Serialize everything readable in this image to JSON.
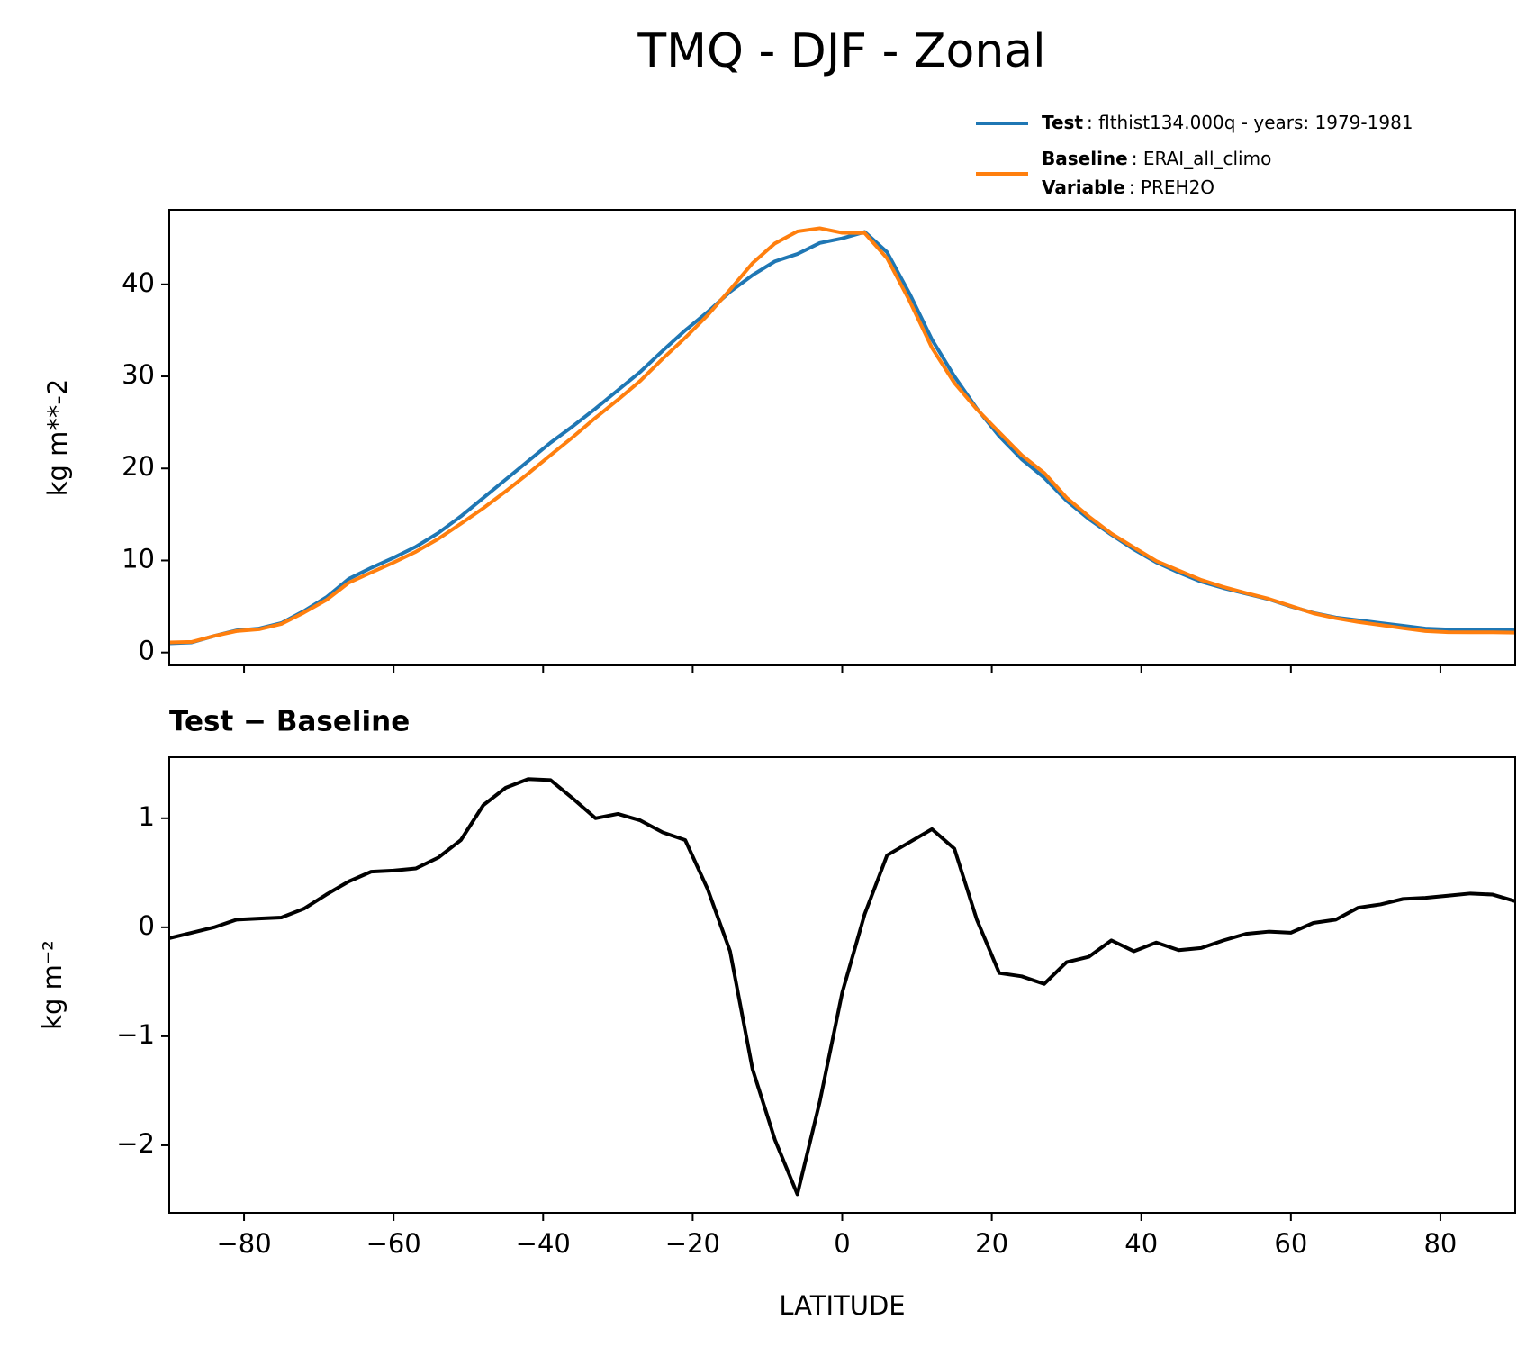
{
  "title": "TMQ - DJF - Zonal",
  "chart_data": [
    {
      "type": "line",
      "ylabel": "kg m**-2",
      "x": [
        -90,
        -87,
        -84,
        -81,
        -78,
        -75,
        -72,
        -69,
        -66,
        -63,
        -60,
        -57,
        -54,
        -51,
        -48,
        -45,
        -42,
        -39,
        -36,
        -33,
        -30,
        -27,
        -24,
        -21,
        -18,
        -15,
        -12,
        -9,
        -6,
        -3,
        0,
        3,
        6,
        9,
        12,
        15,
        18,
        21,
        24,
        27,
        30,
        33,
        36,
        39,
        42,
        45,
        48,
        51,
        54,
        57,
        60,
        63,
        66,
        69,
        72,
        75,
        78,
        81,
        84,
        87,
        90
      ],
      "series": [
        {
          "name": "Test",
          "description": ": flthist134.000q - years: 1979-1981",
          "color": "#1f77b4",
          "values": [
            1.0,
            1.1,
            1.8,
            2.4,
            2.6,
            3.2,
            4.5,
            6.0,
            8.0,
            9.2,
            10.3,
            11.5,
            13.0,
            14.8,
            16.8,
            18.8,
            20.8,
            22.8,
            24.6,
            26.5,
            28.5,
            30.5,
            32.8,
            35.0,
            37.0,
            39.2,
            41.0,
            42.5,
            43.3,
            44.5,
            45.0,
            45.7,
            43.5,
            39.0,
            34.0,
            30.0,
            26.5,
            23.5,
            21.0,
            19.0,
            16.5,
            14.5,
            12.8,
            11.2,
            9.8,
            8.7,
            7.7,
            7.0,
            6.4,
            5.8,
            5.0,
            4.3,
            3.8,
            3.5,
            3.2,
            2.9,
            2.6,
            2.5,
            2.5,
            2.5,
            2.4
          ]
        },
        {
          "name": "Baseline",
          "description": ": ERAI_all_climo",
          "color": "#ff7f0e",
          "values": [
            1.1,
            1.15,
            1.8,
            2.33,
            2.52,
            3.11,
            4.33,
            5.7,
            7.58,
            8.69,
            9.78,
            10.96,
            12.36,
            14.0,
            15.68,
            17.52,
            19.44,
            21.45,
            23.42,
            25.5,
            27.46,
            29.52,
            31.93,
            34.2,
            36.65,
            39.42,
            42.3,
            44.45,
            45.75,
            46.1,
            45.6,
            45.58,
            42.84,
            38.22,
            33.1,
            29.28,
            26.43,
            23.92,
            21.45,
            19.52,
            16.82,
            14.77,
            12.92,
            11.42,
            9.94,
            8.91,
            7.89,
            7.12,
            6.46,
            5.84,
            5.05,
            4.26,
            3.73,
            3.32,
            2.99,
            2.64,
            2.33,
            2.21,
            2.19,
            2.2,
            2.16
          ]
        }
      ],
      "legend_note": {
        "name": "Variable",
        "description": ": PREH2O"
      },
      "xlim": [
        -90,
        90
      ],
      "xticks": [
        -80,
        -60,
        -40,
        -20,
        0,
        20,
        40,
        60,
        80
      ],
      "ylim": [
        -1.4,
        48.1
      ],
      "yticks": [
        0,
        10,
        20,
        30,
        40
      ]
    },
    {
      "type": "line",
      "title": "Test − Baseline",
      "xlabel": "LATITUDE",
      "ylabel": "kg m⁻²",
      "x": [
        -90,
        -87,
        -84,
        -81,
        -78,
        -75,
        -72,
        -69,
        -66,
        -63,
        -60,
        -57,
        -54,
        -51,
        -48,
        -45,
        -42,
        -39,
        -36,
        -33,
        -30,
        -27,
        -24,
        -21,
        -18,
        -15,
        -12,
        -9,
        -6,
        -3,
        0,
        3,
        6,
        9,
        12,
        15,
        18,
        21,
        24,
        27,
        30,
        33,
        36,
        39,
        42,
        45,
        48,
        51,
        54,
        57,
        60,
        63,
        66,
        69,
        72,
        75,
        78,
        81,
        84,
        87,
        90
      ],
      "series": [
        {
          "color": "#000000",
          "values": [
            -0.1,
            -0.05,
            0.0,
            0.07,
            0.08,
            0.09,
            0.17,
            0.3,
            0.42,
            0.51,
            0.52,
            0.54,
            0.64,
            0.8,
            1.12,
            1.28,
            1.36,
            1.35,
            1.18,
            1.0,
            1.04,
            0.98,
            0.87,
            0.8,
            0.35,
            -0.22,
            -1.3,
            -1.95,
            -2.45,
            -1.6,
            -0.6,
            0.12,
            0.66,
            0.78,
            0.9,
            0.72,
            0.07,
            -0.42,
            -0.45,
            -0.52,
            -0.32,
            -0.27,
            -0.12,
            -0.22,
            -0.14,
            -0.21,
            -0.19,
            -0.12,
            -0.06,
            -0.04,
            -0.05,
            0.04,
            0.07,
            0.18,
            0.21,
            0.26,
            0.27,
            0.29,
            0.31,
            0.3,
            0.24
          ]
        }
      ],
      "xlim": [
        -90,
        90
      ],
      "xticks": [
        {
          "value": -80,
          "label": "−80"
        },
        {
          "value": -60,
          "label": "−60"
        },
        {
          "value": -40,
          "label": "−40"
        },
        {
          "value": -20,
          "label": "−20"
        },
        0,
        20,
        40,
        60,
        80
      ],
      "ylim": [
        -2.62,
        1.56
      ],
      "yticks": [
        {
          "value": -2,
          "label": "−2"
        },
        {
          "value": -1,
          "label": "−1"
        },
        0,
        1
      ]
    }
  ]
}
